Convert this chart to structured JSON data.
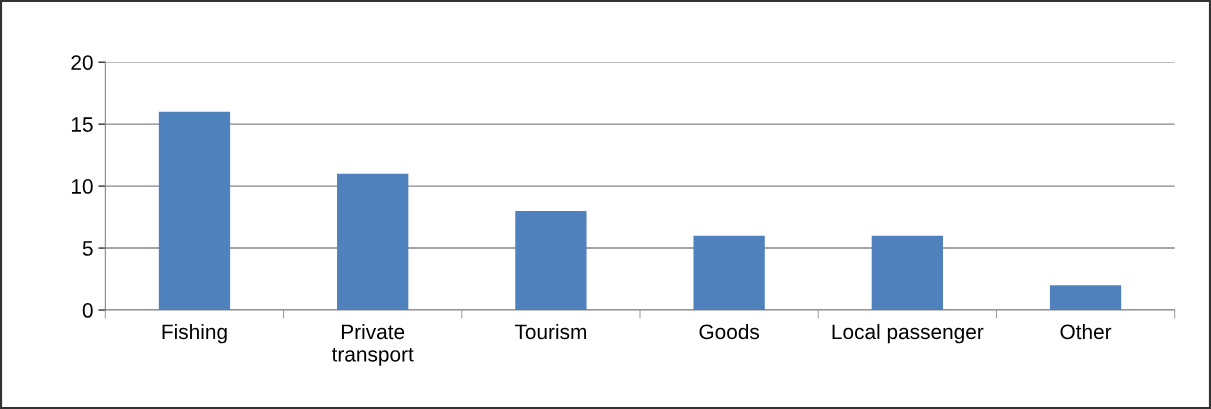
{
  "chart_data": {
    "type": "bar",
    "categories": [
      "Fishing",
      "Private\ntransport",
      "Tourism",
      "Goods",
      "Local passenger",
      "Other"
    ],
    "values": [
      16,
      11,
      8,
      6,
      6,
      2
    ],
    "color": "#4f81bd",
    "ylim": [
      0,
      20
    ],
    "yticks": [
      0,
      5,
      10,
      15,
      20
    ],
    "grid": "y"
  }
}
